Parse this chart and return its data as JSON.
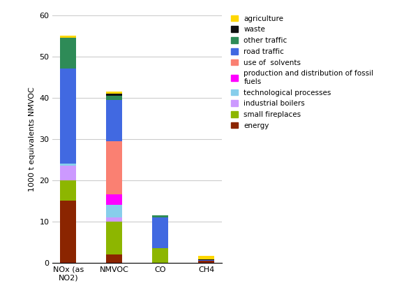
{
  "categories": [
    "NOx (as\nNO2)",
    "NMVOC",
    "CO",
    "CH4"
  ],
  "series": [
    {
      "label": "energy",
      "color": "#8B2500",
      "values": [
        15.0,
        2.0,
        0.0,
        0.5
      ]
    },
    {
      "label": "small fireplaces",
      "color": "#8DB600",
      "values": [
        5.0,
        8.0,
        3.5,
        0.0
      ]
    },
    {
      "label": "industrial boilers",
      "color": "#CC99FF",
      "values": [
        3.5,
        1.0,
        0.0,
        0.0
      ]
    },
    {
      "label": "technological processes",
      "color": "#87CEEB",
      "values": [
        0.5,
        3.0,
        0.0,
        0.0
      ]
    },
    {
      "label": "production and distribution of fossil\nfuels",
      "color": "#FF00FF",
      "values": [
        0.0,
        2.5,
        0.0,
        0.0
      ]
    },
    {
      "label": "use of  solvents",
      "color": "#FA8072",
      "values": [
        0.0,
        13.0,
        0.0,
        0.0
      ]
    },
    {
      "label": "road traffic",
      "color": "#4169E1",
      "values": [
        23.0,
        10.0,
        7.5,
        0.1
      ]
    },
    {
      "label": "other traffic",
      "color": "#2E8B57",
      "values": [
        7.5,
        1.0,
        0.5,
        0.0
      ]
    },
    {
      "label": "waste",
      "color": "#111111",
      "values": [
        0.0,
        0.5,
        0.0,
        0.3
      ]
    },
    {
      "label": "agriculture",
      "color": "#FFD700",
      "values": [
        0.5,
        0.5,
        0.0,
        0.7
      ]
    }
  ],
  "ylabel": "1000 t equivalents NMVOC",
  "ylim": [
    0,
    60
  ],
  "yticks": [
    0,
    10,
    20,
    30,
    40,
    50,
    60
  ],
  "background_color": "#ffffff",
  "grid_color": "#cccccc",
  "bar_width": 0.35
}
